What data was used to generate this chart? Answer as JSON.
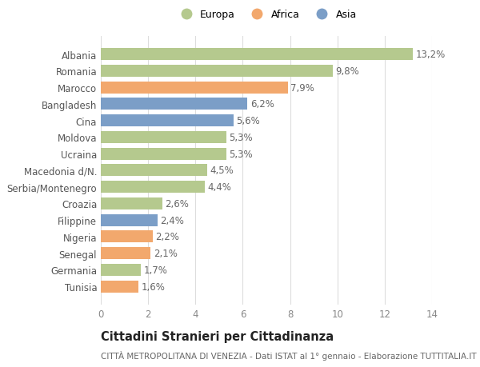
{
  "title1": "Cittadini Stranieri per Cittadinanza",
  "title2": "CITTÀ METROPOLITANA DI VENEZIA - Dati ISTAT al 1° gennaio - Elaborazione TUTTITALIA.IT",
  "categories": [
    "Albania",
    "Romania",
    "Marocco",
    "Bangladesh",
    "Cina",
    "Moldova",
    "Ucraina",
    "Macedonia d/N.",
    "Serbia/Montenegro",
    "Croazia",
    "Filippine",
    "Nigeria",
    "Senegal",
    "Germania",
    "Tunisia"
  ],
  "values": [
    13.2,
    9.8,
    7.9,
    6.2,
    5.6,
    5.3,
    5.3,
    4.5,
    4.4,
    2.6,
    2.4,
    2.2,
    2.1,
    1.7,
    1.6
  ],
  "continents": [
    "Europa",
    "Europa",
    "Africa",
    "Asia",
    "Asia",
    "Europa",
    "Europa",
    "Europa",
    "Europa",
    "Europa",
    "Asia",
    "Africa",
    "Africa",
    "Europa",
    "Africa"
  ],
  "colors": {
    "Europa": "#b5c98e",
    "Africa": "#f2a86d",
    "Asia": "#7b9ec7"
  },
  "legend_labels": [
    "Europa",
    "Africa",
    "Asia"
  ],
  "xlim": [
    0,
    14
  ],
  "xticks": [
    0,
    2,
    4,
    6,
    8,
    10,
    12,
    14
  ],
  "bar_height": 0.72,
  "background_color": "#ffffff",
  "grid_color": "#dddddd",
  "label_fontsize": 8.5,
  "ytick_fontsize": 8.5,
  "xtick_fontsize": 8.5,
  "title1_fontsize": 10.5,
  "title2_fontsize": 7.5,
  "value_label_color": "#666666",
  "ytick_color": "#555555"
}
